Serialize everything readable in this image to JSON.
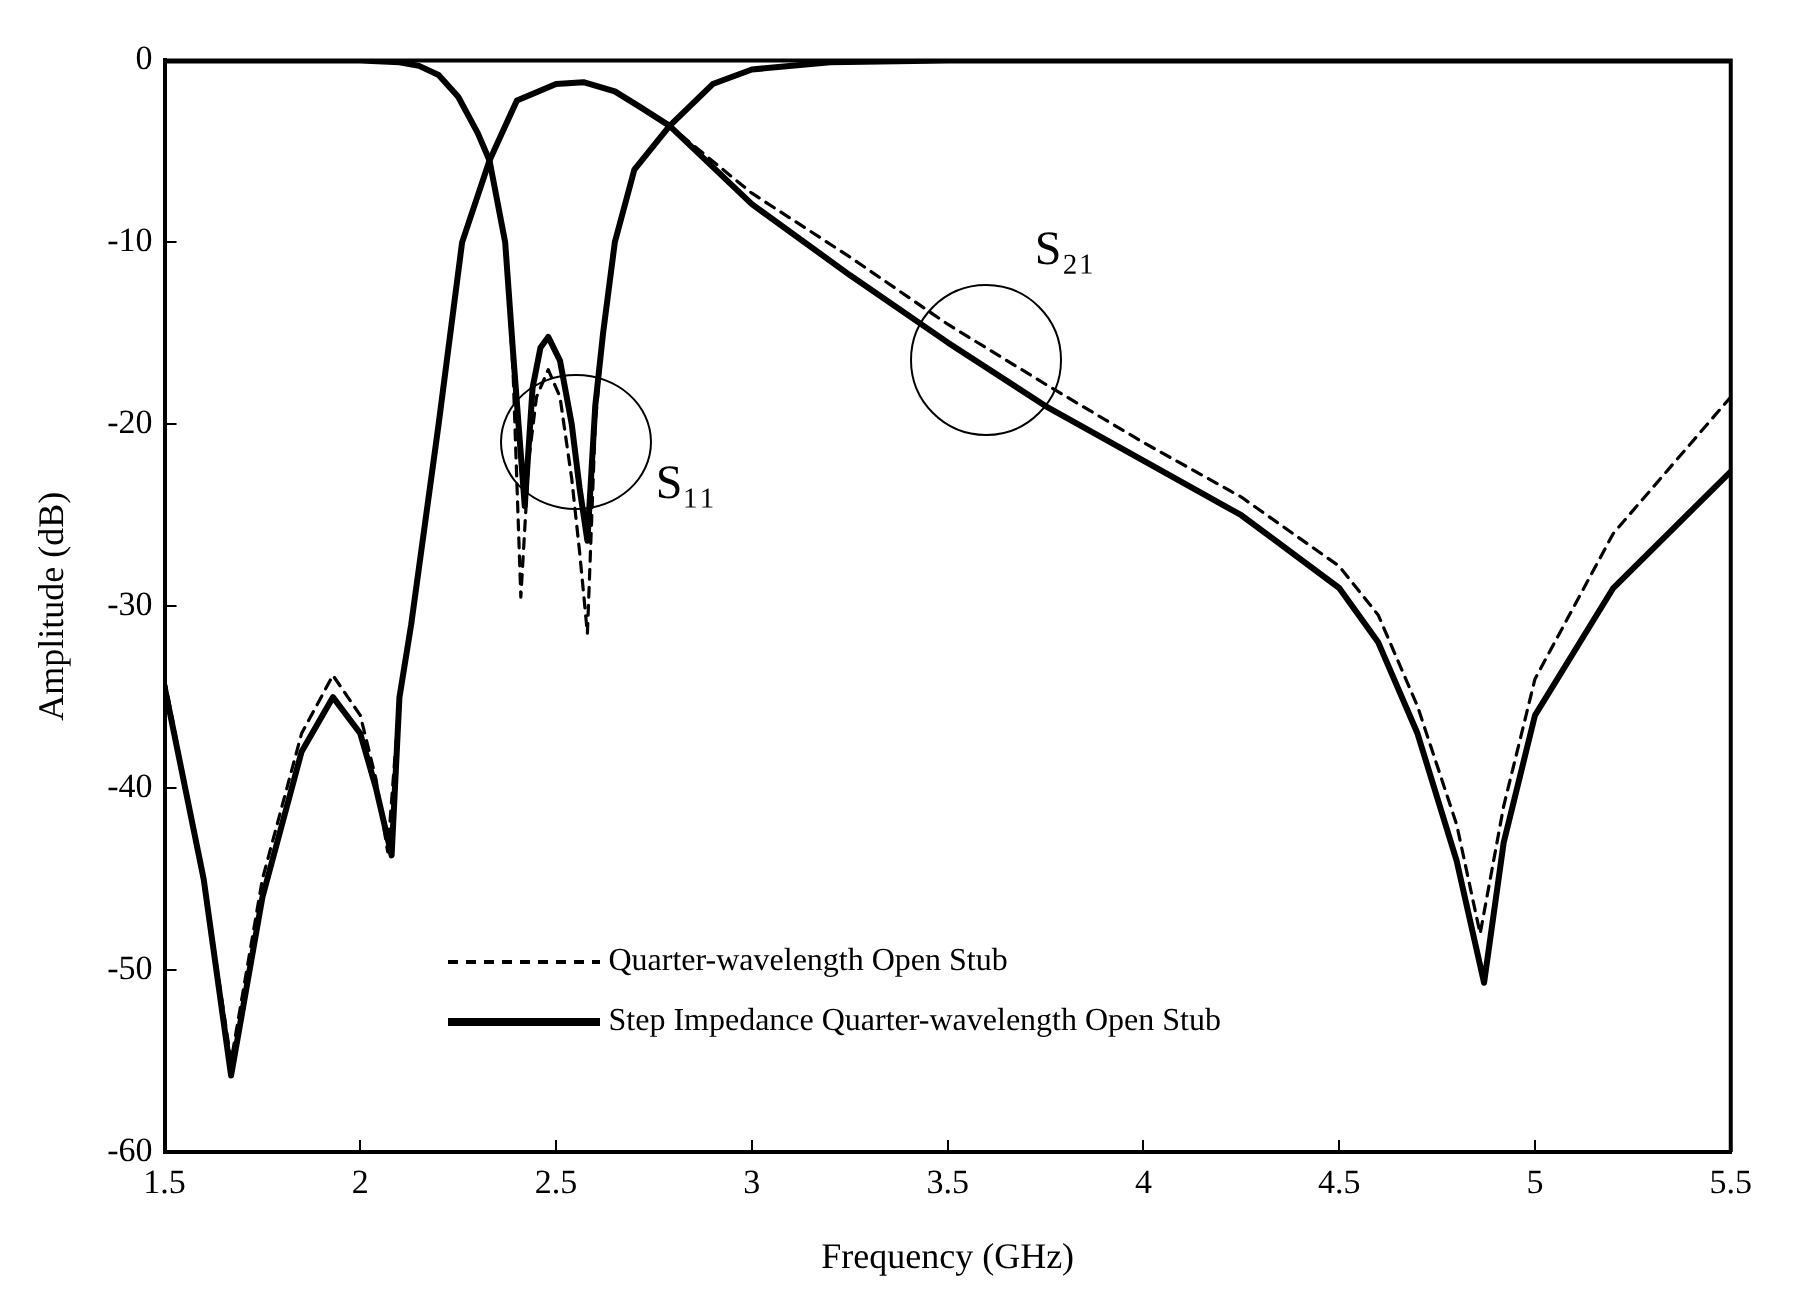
{
  "chart_data": {
    "type": "line",
    "xlabel": "Frequency (GHz)",
    "ylabel": "Amplitude (dB)",
    "xlim": [
      1.5,
      5.5
    ],
    "xticks": [
      1.5,
      2,
      2.5,
      3,
      3.5,
      4,
      4.5,
      5,
      5.5
    ],
    "ylim": [
      -60,
      0
    ],
    "yticks": [
      -60,
      -50,
      -40,
      -30,
      -20,
      -10,
      0
    ],
    "grid": false,
    "legend": "bottom left",
    "marker": "none",
    "annotations": [
      {
        "text": "S₁₁",
        "x": 2.55,
        "y": -21
      },
      {
        "text": "S₂₁",
        "x": 3.6,
        "y": -16.5
      }
    ],
    "series": [
      {
        "name": "Quarter-wavelength Open Stub",
        "color": "#000000",
        "line_style": "dashed",
        "x": [
          1.5,
          1.8,
          2,
          2.1,
          2.15,
          2.2,
          2.25,
          2.3,
          2.33,
          2.37,
          2.39,
          2.41,
          2.43,
          2.45,
          2.48,
          2.51,
          2.54,
          2.56,
          2.58,
          2.6,
          2.62,
          2.65,
          2.7,
          2.79,
          2.9,
          3,
          3.2,
          3.5,
          4,
          4.5,
          5,
          5.5
        ],
        "values": [
          0,
          0,
          0,
          -0.1,
          -0.3,
          -0.8,
          -2,
          -4,
          -5.5,
          -10,
          -17,
          -29.5,
          -22,
          -18.5,
          -17,
          -18.5,
          -23,
          -27,
          -31.5,
          -20,
          -15,
          -10,
          -6,
          -3.6,
          -1.3,
          -0.5,
          -0.1,
          0,
          0,
          0,
          0,
          0
        ]
      },
      {
        "name": "Step Impedance Quarter-wavelength Open Stub",
        "color": "#000000",
        "line_style": "solid",
        "x": [
          1.5,
          1.8,
          2,
          2.1,
          2.15,
          2.2,
          2.25,
          2.3,
          2.33,
          2.37,
          2.39,
          2.42,
          2.44,
          2.46,
          2.48,
          2.51,
          2.54,
          2.56,
          2.58,
          2.6,
          2.62,
          2.65,
          2.7,
          2.79,
          2.9,
          3,
          3.2,
          3.5,
          4,
          4.5,
          5,
          5.5
        ],
        "values": [
          0,
          0,
          0,
          -0.1,
          -0.3,
          -0.8,
          -2,
          -4,
          -5.5,
          -10,
          -16,
          -24.5,
          -18,
          -15.8,
          -15.2,
          -16.5,
          -20,
          -23.5,
          -26.4,
          -19,
          -15,
          -10,
          -6,
          -3.6,
          -1.3,
          -0.5,
          -0.1,
          0,
          0,
          0,
          0,
          0
        ]
      },
      {
        "color": "#000000",
        "line_style": "dashed",
        "x": [
          1.5,
          1.6,
          1.67,
          1.75,
          1.85,
          1.93,
          2,
          2.04,
          2.07,
          2.1,
          2.13,
          2.2,
          2.26,
          2.33,
          2.4,
          2.5,
          2.57,
          2.65,
          2.71,
          2.79,
          3,
          3.25,
          3.5,
          3.75,
          4,
          4.25,
          4.5,
          4.6,
          4.7,
          4.8,
          4.86,
          4.92,
          5,
          5.2,
          5.5
        ],
        "values": [
          -34,
          -45,
          -55,
          -45,
          -37,
          -33.8,
          -36,
          -39.5,
          -43.5,
          -35,
          -31,
          -20,
          -10,
          -5.5,
          -2.2,
          -1.3,
          -1.2,
          -1.7,
          -2.5,
          -3.6,
          -7.3,
          -10.8,
          -14.5,
          -17.8,
          -21,
          -24,
          -27.8,
          -30.5,
          -35.5,
          -42,
          -48,
          -41,
          -34,
          -26,
          -18.5
        ]
      },
      {
        "color": "#000000",
        "line_style": "solid",
        "x": [
          1.5,
          1.6,
          1.67,
          1.75,
          1.85,
          1.93,
          2,
          2.04,
          2.08,
          2.1,
          2.13,
          2.2,
          2.26,
          2.33,
          2.4,
          2.5,
          2.57,
          2.65,
          2.71,
          2.79,
          3,
          3.25,
          3.5,
          3.75,
          4,
          4.25,
          4.5,
          4.6,
          4.7,
          4.8,
          4.87,
          4.92,
          5,
          5.2,
          5.5
        ],
        "values": [
          -34.4,
          -45,
          -55.8,
          -46,
          -38,
          -35,
          -37,
          -40,
          -43.7,
          -35,
          -31,
          -20,
          -10,
          -5.5,
          -2.2,
          -1.3,
          -1.2,
          -1.7,
          -2.5,
          -3.6,
          -7.9,
          -11.8,
          -15.5,
          -19,
          -22,
          -25,
          -29,
          -32,
          -37,
          -44,
          -50.7,
          -43,
          -36,
          -29,
          -22.6
        ]
      }
    ]
  }
}
